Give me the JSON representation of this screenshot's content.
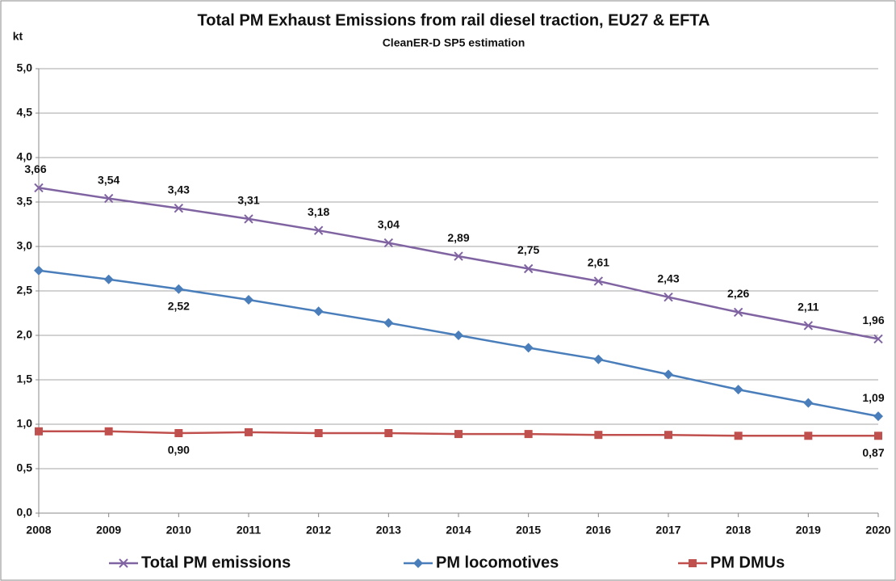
{
  "chart_data": {
    "type": "line",
    "title": "Total PM Exhaust Emissions from rail diesel traction, EU27 & EFTA",
    "subtitle": "CleanER-D SP5 estimation",
    "y_label": "kt",
    "x": [
      2008,
      2009,
      2010,
      2011,
      2012,
      2013,
      2014,
      2015,
      2016,
      2017,
      2018,
      2019,
      2020
    ],
    "xlim": [
      2008,
      2020
    ],
    "xticks": [
      2008,
      2009,
      2010,
      2011,
      2012,
      2013,
      2014,
      2015,
      2016,
      2017,
      2018,
      2019,
      2020
    ],
    "ylim": [
      0,
      5
    ],
    "yticks": [
      {
        "value": 0,
        "label": "0,0"
      },
      {
        "value": 0.5,
        "label": "0,5"
      },
      {
        "value": 1,
        "label": "1,0"
      },
      {
        "value": 1.5,
        "label": "1,5"
      },
      {
        "value": 2,
        "label": "2,0"
      },
      {
        "value": 2.5,
        "label": "2,5"
      },
      {
        "value": 3,
        "label": "3,0"
      },
      {
        "value": 3.5,
        "label": "3,5"
      },
      {
        "value": 4,
        "label": "4,0"
      },
      {
        "value": 4.5,
        "label": "4,5"
      },
      {
        "value": 5,
        "label": "5,0"
      }
    ],
    "grid": true,
    "legend": "bottom",
    "series": [
      {
        "name": "Total PM emissions",
        "color": "#8064a2",
        "marker": "x",
        "values": [
          3.66,
          3.54,
          3.43,
          3.31,
          3.18,
          3.04,
          2.89,
          2.75,
          2.61,
          2.43,
          2.26,
          2.11,
          1.96
        ],
        "value_labels": [
          "3,66",
          "3,54",
          "3,43",
          "3,31",
          "3,18",
          "3,04",
          "2,89",
          "2,75",
          "2,61",
          "2,43",
          "2,26",
          "2,11",
          "1,96"
        ]
      },
      {
        "name": "PM locomotives",
        "color": "#4a7ebb",
        "marker": "diamond",
        "values": [
          2.73,
          2.63,
          2.52,
          2.4,
          2.27,
          2.14,
          2.0,
          1.86,
          1.73,
          1.56,
          1.39,
          1.24,
          1.09
        ],
        "value_labels": [
          null,
          null,
          "2,52",
          null,
          null,
          null,
          null,
          null,
          null,
          null,
          null,
          null,
          "1,09"
        ]
      },
      {
        "name": "PM DMUs",
        "color": "#c0504d",
        "marker": "square",
        "values": [
          0.92,
          0.92,
          0.9,
          0.91,
          0.9,
          0.9,
          0.89,
          0.89,
          0.88,
          0.88,
          0.87,
          0.87,
          0.87
        ],
        "value_labels": [
          null,
          null,
          "0,90",
          null,
          null,
          null,
          null,
          null,
          null,
          null,
          null,
          null,
          "0,87"
        ]
      }
    ]
  }
}
